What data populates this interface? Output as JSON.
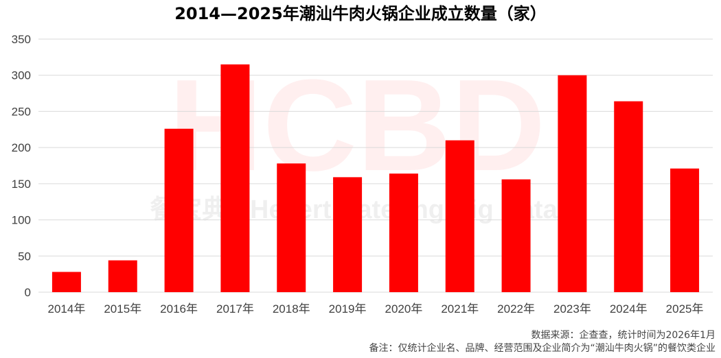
{
  "chart_data": {
    "type": "bar",
    "title": "2014—2025年潮汕牛肉火锅企业成立数量（家）",
    "xlabel": "",
    "ylabel": "",
    "categories": [
      "2014年",
      "2015年",
      "2016年",
      "2017年",
      "2018年",
      "2019年",
      "2020年",
      "2021年",
      "2022年",
      "2023年",
      "2024年",
      "2025年"
    ],
    "values": [
      28,
      44,
      226,
      315,
      178,
      159,
      164,
      210,
      156,
      300,
      264,
      171
    ],
    "ylim": [
      0,
      350
    ],
    "yticks": [
      0,
      50,
      100,
      150,
      200,
      250,
      300,
      350
    ],
    "grid": true,
    "legend": "none",
    "bar_color": "#ff0000",
    "grid_color": "#d9d9d9"
  },
  "watermark": {
    "logo_text": "HCBD",
    "subtitle_text": "餐宝典 | Hevert Catering Big Data"
  },
  "notes": {
    "source": "数据来源：企查查，统计时间为2026年1月",
    "remark": "备注：仅统计企业名、品牌、经营范围及企业简介为“潮汕牛肉火锅”的餐饮类企业"
  }
}
